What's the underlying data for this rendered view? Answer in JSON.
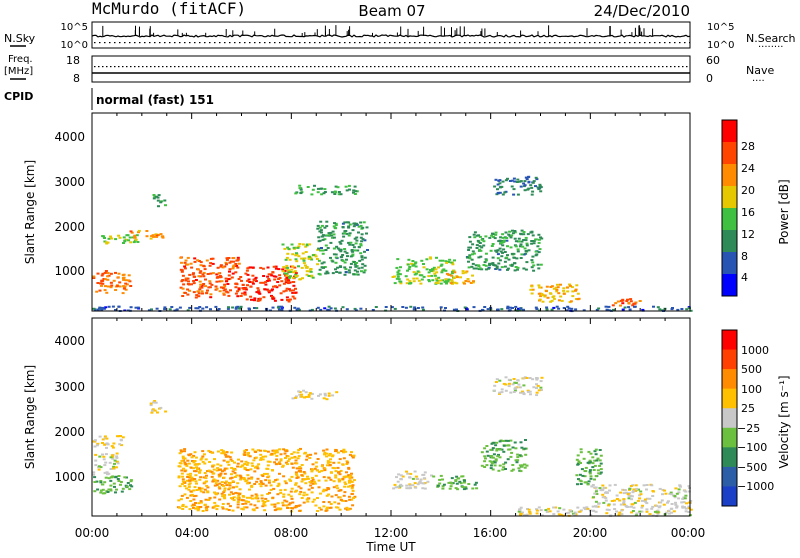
{
  "header": {
    "station": "McMurdo (fitACF)",
    "beam": "Beam 07",
    "date": "24/Dec/2010"
  },
  "noise_panel": {
    "left_label": "N.Sky",
    "left_ticks": [
      "10^5",
      "10^0"
    ],
    "right_ticks": [
      "10^5",
      "10^0"
    ],
    "right_label": "N.Search",
    "right_dots": "········"
  },
  "freq_panel": {
    "left_label_1": "Freq.",
    "left_label_2": "[MHz]",
    "left_ticks": [
      "18",
      "8"
    ],
    "right_ticks": [
      "60",
      "0"
    ],
    "right_label": "Nave",
    "right_dots": "····"
  },
  "cpid": {
    "label": "CPID",
    "mode": "normal (fast) 151"
  },
  "power_panel": {
    "ylabel": "Slant Range [km]",
    "yticks": [
      "4000",
      "3000",
      "2000",
      "1000"
    ],
    "colorbar_label": "Power [dB]",
    "colorbar_ticks": [
      "28",
      "24",
      "20",
      "16",
      "12",
      "8",
      "4"
    ],
    "colors": [
      "#0000ff",
      "#2855b4",
      "#2e8b57",
      "#40c040",
      "#e6c800",
      "#ff8c00",
      "#ff4500",
      "#ff0000"
    ]
  },
  "velocity_panel": {
    "ylabel": "Slant Range [km]",
    "yticks": [
      "4000",
      "3000",
      "2000",
      "1000"
    ],
    "colorbar_label": "Velocity [m s⁻¹]",
    "colorbar_ticks": [
      "1000",
      "500",
      "100",
      "25",
      "−25",
      "−100",
      "−500",
      "−1000"
    ],
    "colors": [
      "#1c3fc8",
      "#2c5ea8",
      "#2e8b57",
      "#6cc040",
      "#c8c8c8",
      "#ffc000",
      "#ff8c00",
      "#ff4000",
      "#ff0000"
    ]
  },
  "xaxis": {
    "label": "Time UT",
    "ticks": [
      "00:00",
      "04:00",
      "08:00",
      "12:00",
      "16:00",
      "20:00",
      "00:00"
    ]
  },
  "chart_data": {
    "type": "heatmap",
    "title": "McMurdo (fitACF) Beam 07 24/Dec/2010",
    "xlabel": "Time UT",
    "ylabel": "Slant Range [km]",
    "xlim_hours": [
      0,
      24
    ],
    "ylim_km": [
      180,
      4600
    ],
    "power_db_range": [
      0,
      30
    ],
    "velocity_range": [
      -1000,
      1000
    ],
    "power_regions": [
      {
        "t": [
          0.0,
          1.5
        ],
        "r": [
          600,
          1100
        ],
        "db": 22
      },
      {
        "t": [
          0.0,
          1.8
        ],
        "r": [
          1700,
          1900
        ],
        "db": 14
      },
      {
        "t": [
          1.5,
          2.8
        ],
        "r": [
          1800,
          2000
        ],
        "db": 20
      },
      {
        "t": [
          2.4,
          2.9
        ],
        "r": [
          2500,
          2800
        ],
        "db": 10
      },
      {
        "t": [
          3.5,
          6.0
        ],
        "r": [
          500,
          1400
        ],
        "db": 24
      },
      {
        "t": [
          6.0,
          8.2
        ],
        "r": [
          400,
          1200
        ],
        "db": 26
      },
      {
        "t": [
          7.6,
          9.0
        ],
        "r": [
          900,
          1700
        ],
        "db": 16
      },
      {
        "t": [
          8.0,
          10.6
        ],
        "r": [
          2800,
          3000
        ],
        "db": 12
      },
      {
        "t": [
          9.0,
          11.0
        ],
        "r": [
          1000,
          2200
        ],
        "db": 10
      },
      {
        "t": [
          12.0,
          14.5
        ],
        "r": [
          800,
          1400
        ],
        "db": 14
      },
      {
        "t": [
          14.2,
          15.3
        ],
        "r": [
          800,
          1100
        ],
        "db": 18
      },
      {
        "t": [
          15.0,
          18.0
        ],
        "r": [
          1100,
          2000
        ],
        "db": 10
      },
      {
        "t": [
          16.0,
          18.0
        ],
        "r": [
          2800,
          3200
        ],
        "db": 8
      },
      {
        "t": [
          17.5,
          19.5
        ],
        "r": [
          400,
          800
        ],
        "db": 18
      },
      {
        "t": [
          20.8,
          22.0
        ],
        "r": [
          300,
          500
        ],
        "db": 24
      },
      {
        "t": [
          0.0,
          24.0
        ],
        "r": [
          200,
          300
        ],
        "db": 6
      }
    ],
    "velocity_regions": [
      {
        "t": [
          0.0,
          1.6
        ],
        "r": [
          700,
          1100
        ],
        "v": -300
      },
      {
        "t": [
          0.0,
          1.0
        ],
        "r": [
          1100,
          1600
        ],
        "v": 25
      },
      {
        "t": [
          0.0,
          1.2
        ],
        "r": [
          1700,
          2000
        ],
        "v": 100
      },
      {
        "t": [
          2.3,
          2.9
        ],
        "r": [
          2500,
          2800
        ],
        "v": 100
      },
      {
        "t": [
          3.4,
          10.5
        ],
        "r": [
          300,
          1700
        ],
        "v": 300
      },
      {
        "t": [
          8.0,
          9.8
        ],
        "r": [
          2800,
          3000
        ],
        "v": 100
      },
      {
        "t": [
          12.0,
          13.6
        ],
        "r": [
          800,
          1200
        ],
        "v": 25
      },
      {
        "t": [
          13.6,
          15.4
        ],
        "r": [
          800,
          1100
        ],
        "v": -300
      },
      {
        "t": [
          15.6,
          17.4
        ],
        "r": [
          1200,
          1900
        ],
        "v": -300
      },
      {
        "t": [
          16.0,
          18.0
        ],
        "r": [
          2900,
          3300
        ],
        "v": 25
      },
      {
        "t": [
          19.4,
          20.4
        ],
        "r": [
          900,
          1700
        ],
        "v": -300
      },
      {
        "t": [
          20.0,
          24.0
        ],
        "r": [
          400,
          900
        ],
        "v": 25
      },
      {
        "t": [
          17.0,
          24.0
        ],
        "r": [
          200,
          400
        ],
        "v": 25
      }
    ]
  }
}
